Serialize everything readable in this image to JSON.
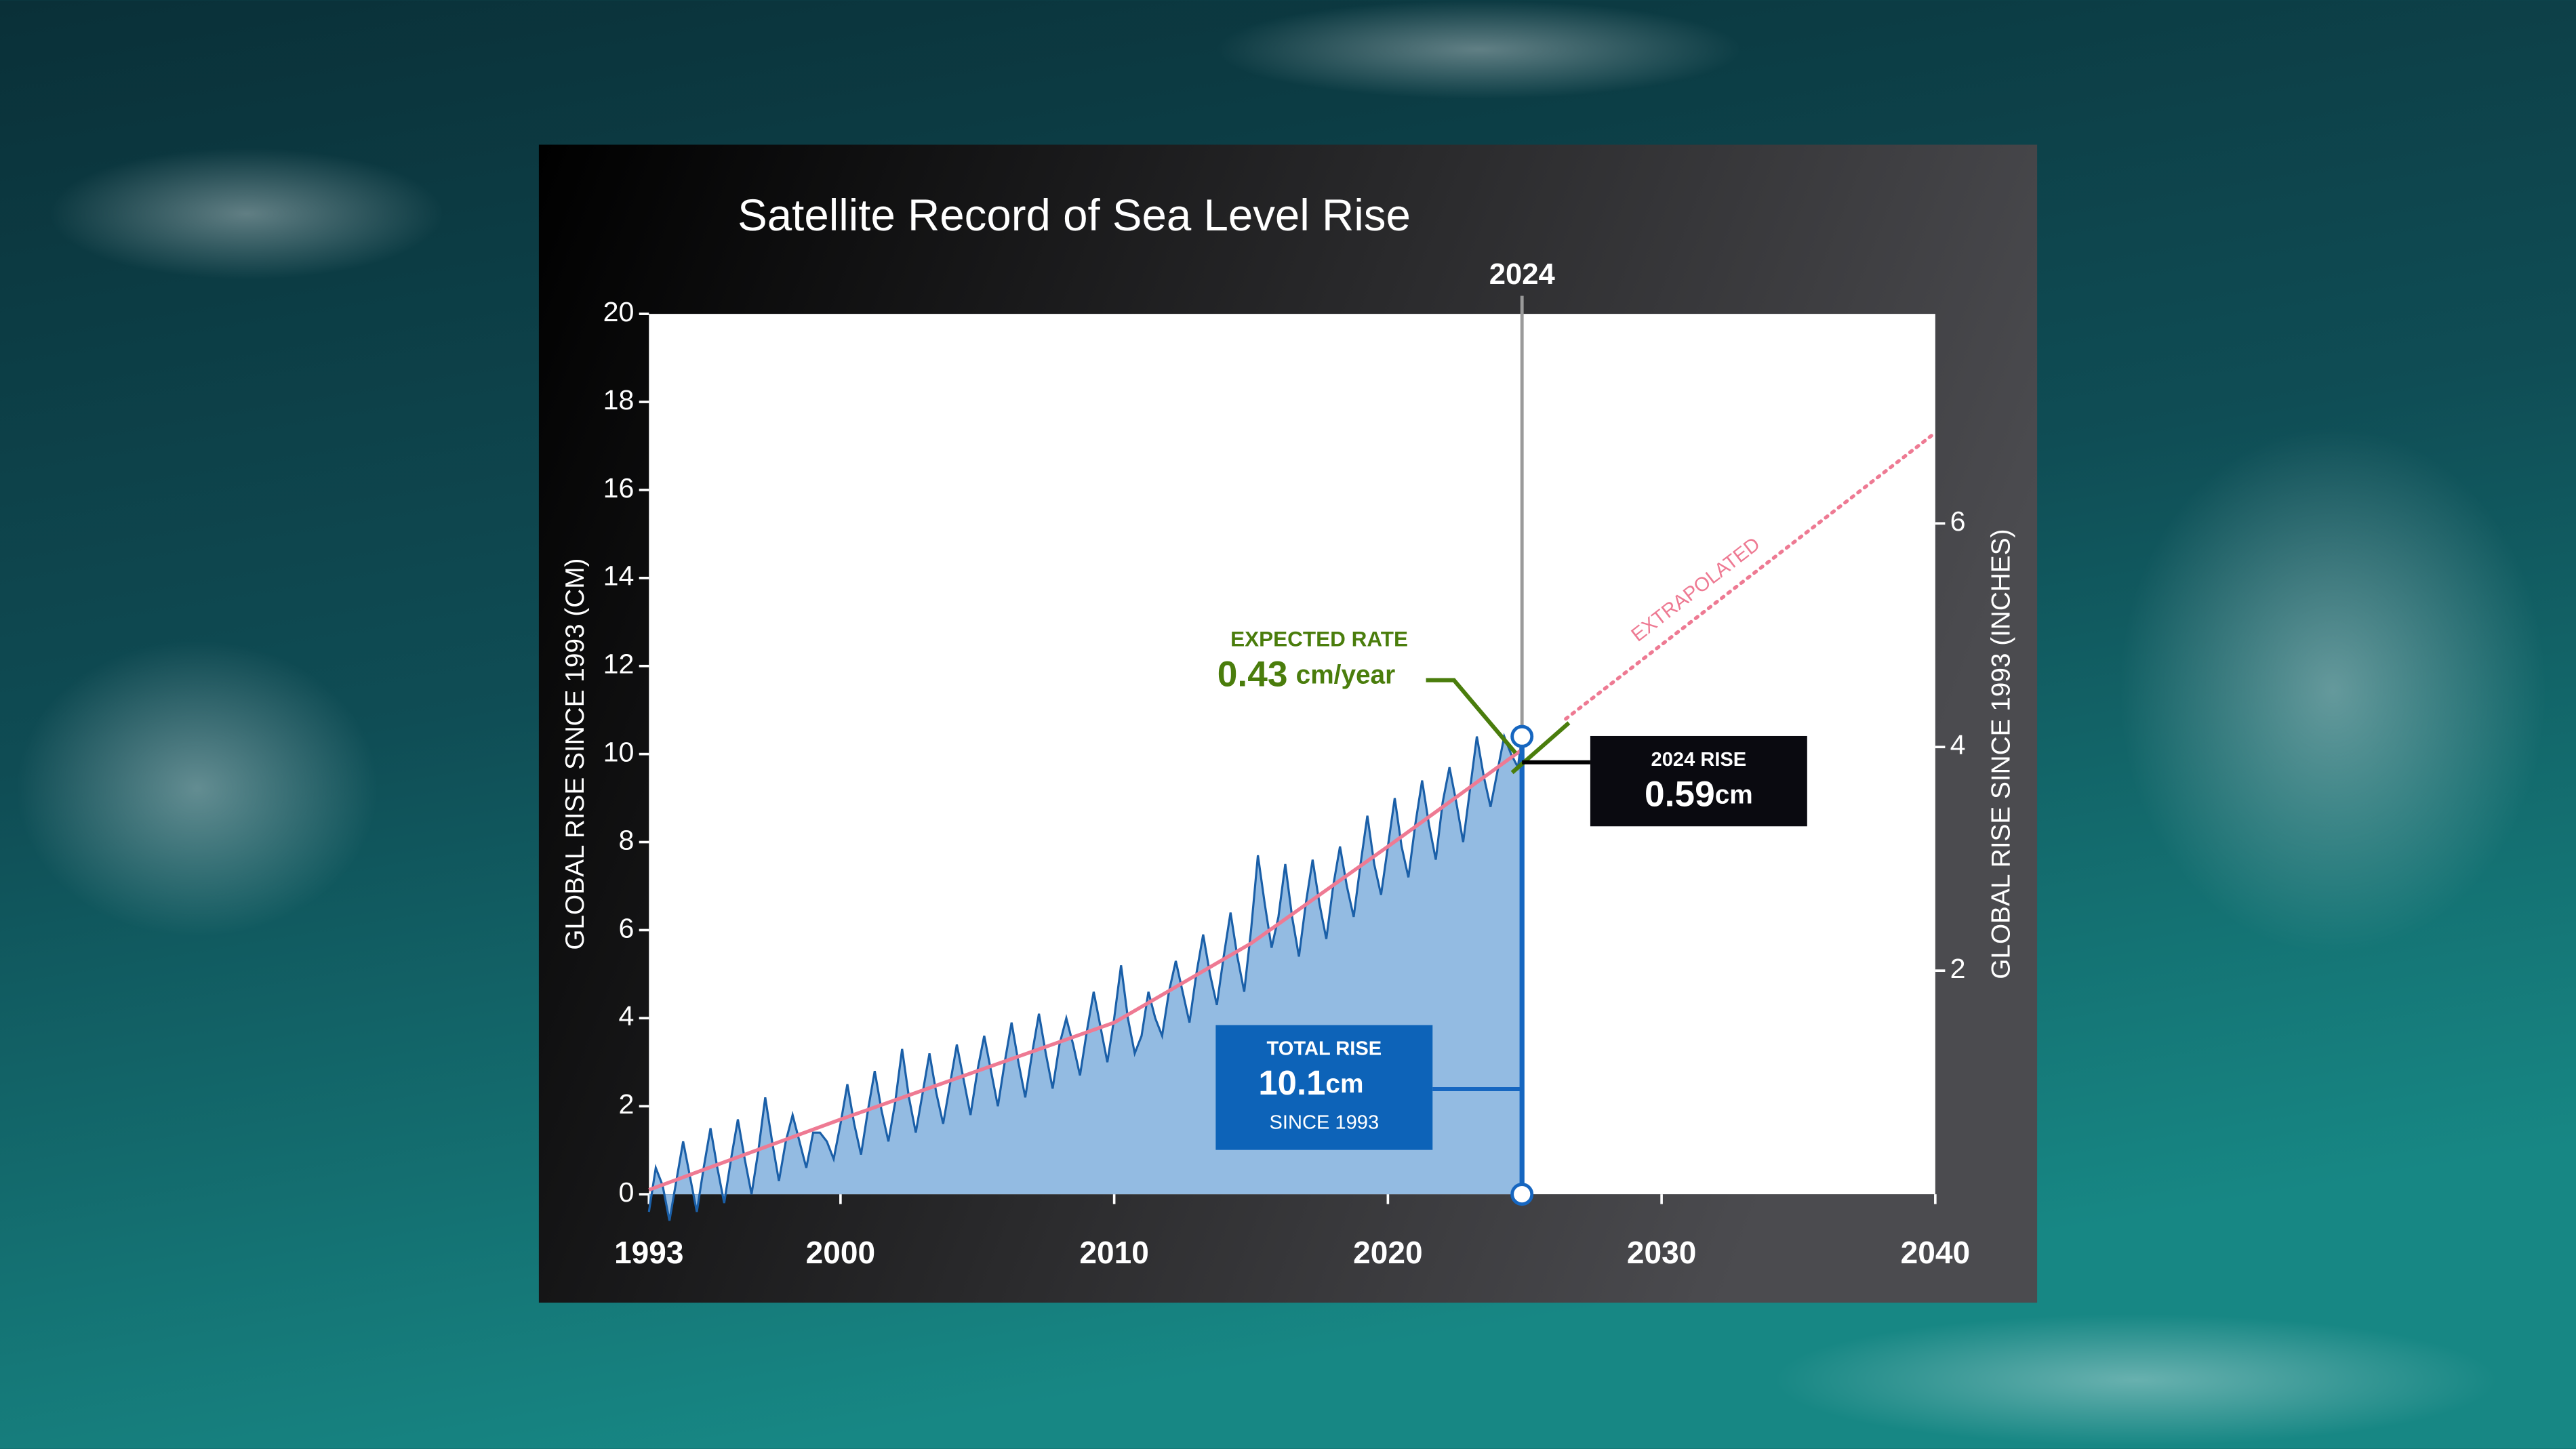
{
  "chart_data": {
    "type": "line",
    "title": "Satellite Record of Sea Level Rise",
    "ylabel": "GLOBAL RISE SINCE 1993 (CM)",
    "y2label": "GLOBAL RISE SINCE 1993 (INCHES)",
    "xlim": [
      1993,
      2040
    ],
    "xticks": [
      1993,
      2000,
      2010,
      2020,
      2030,
      2040
    ],
    "ylim": [
      0,
      20
    ],
    "yticks": [
      0,
      2,
      4,
      6,
      8,
      10,
      12,
      14,
      16,
      18,
      20
    ],
    "y2lim": [
      0,
      7.874
    ],
    "y2ticks": [
      2,
      4,
      6
    ],
    "series": [
      {
        "style": "area",
        "color": "#1a5fa8",
        "fill": "#93bbe2",
        "x": [
          1993,
          1993.25,
          1993.5,
          1993.75,
          1994,
          1994.25,
          1994.5,
          1994.75,
          1995,
          1995.25,
          1995.5,
          1995.75,
          1996,
          1996.25,
          1996.5,
          1996.75,
          1997,
          1997.25,
          1997.5,
          1997.75,
          1998,
          1998.25,
          1998.5,
          1998.75,
          1999,
          1999.25,
          1999.5,
          1999.75,
          2000,
          2000.25,
          2000.5,
          2000.75,
          2001,
          2001.25,
          2001.5,
          2001.75,
          2002,
          2002.25,
          2002.5,
          2002.75,
          2003,
          2003.25,
          2003.5,
          2003.75,
          2004,
          2004.25,
          2004.5,
          2004.75,
          2005,
          2005.25,
          2005.5,
          2005.75,
          2006,
          2006.25,
          2006.5,
          2006.75,
          2007,
          2007.25,
          2007.5,
          2007.75,
          2008,
          2008.25,
          2008.5,
          2008.75,
          2009,
          2009.25,
          2009.5,
          2009.75,
          2010,
          2010.25,
          2010.5,
          2010.75,
          2011,
          2011.25,
          2011.5,
          2011.75,
          2012,
          2012.25,
          2012.5,
          2012.75,
          2013,
          2013.25,
          2013.5,
          2013.75,
          2014,
          2014.25,
          2014.5,
          2014.75,
          2015,
          2015.25,
          2015.5,
          2015.75,
          2016,
          2016.25,
          2016.5,
          2016.75,
          2017,
          2017.25,
          2017.5,
          2017.75,
          2018,
          2018.25,
          2018.5,
          2018.75,
          2019,
          2019.25,
          2019.5,
          2019.75,
          2020,
          2020.25,
          2020.5,
          2020.75,
          2021,
          2021.25,
          2021.5,
          2021.75,
          2022,
          2022.25,
          2022.5,
          2022.75,
          2023,
          2023.25,
          2023.5,
          2023.75,
          2024,
          2024.25,
          2024.5,
          2024.75,
          2024.9
        ],
        "values": [
          -0.4,
          0.6,
          0.2,
          -0.6,
          0.3,
          1.2,
          0.4,
          -0.4,
          0.6,
          1.5,
          0.6,
          -0.2,
          0.8,
          1.7,
          0.8,
          0.0,
          1.0,
          2.2,
          1.2,
          0.3,
          1.2,
          1.8,
          1.2,
          0.6,
          1.4,
          1.4,
          1.2,
          0.8,
          1.6,
          2.5,
          1.6,
          0.9,
          1.9,
          2.8,
          1.9,
          1.2,
          2.1,
          3.3,
          2.2,
          1.4,
          2.3,
          3.2,
          2.3,
          1.6,
          2.5,
          3.4,
          2.6,
          1.8,
          2.8,
          3.6,
          2.8,
          2.0,
          3.0,
          3.9,
          3.0,
          2.2,
          3.2,
          4.1,
          3.2,
          2.4,
          3.4,
          4.0,
          3.4,
          2.7,
          3.7,
          4.6,
          3.8,
          3.0,
          4.0,
          5.2,
          4.0,
          3.2,
          3.6,
          4.6,
          4.0,
          3.6,
          4.6,
          5.3,
          4.6,
          3.9,
          5.0,
          5.9,
          5.0,
          4.3,
          5.4,
          6.4,
          5.4,
          4.6,
          6.0,
          7.7,
          6.6,
          5.6,
          6.3,
          7.5,
          6.3,
          5.4,
          6.6,
          7.6,
          6.6,
          5.8,
          7.0,
          7.9,
          7.0,
          6.3,
          7.5,
          8.6,
          7.5,
          6.8,
          7.9,
          9.0,
          7.9,
          7.2,
          8.4,
          9.4,
          8.4,
          7.6,
          8.9,
          9.7,
          8.9,
          8.0,
          9.2,
          10.4,
          9.5,
          8.8,
          9.6,
          10.4,
          10.0,
          9.7,
          10.4
        ]
      },
      {
        "style": "line",
        "color": "#ee7a93",
        "x": [
          1993,
          2000,
          2005,
          2010,
          2015,
          2020,
          2024.9
        ],
        "values": [
          0.1,
          1.7,
          2.8,
          3.9,
          5.7,
          7.9,
          10.1
        ]
      },
      {
        "style": "dotted",
        "color": "#ee7a93",
        "label": "EXTRAPOLATED",
        "x": [
          2026.5,
          2040
        ],
        "values": [
          10.8,
          17.3
        ]
      }
    ],
    "marker": {
      "x": 2024.9,
      "label": "2024"
    },
    "expected_rate": {
      "heading": "EXPECTED RATE",
      "value": "0.43",
      "unit": "cm/year"
    },
    "rise_2024": {
      "heading": "2024 RISE",
      "value": "0.59",
      "unit": "cm"
    },
    "total_rise": {
      "heading": "TOTAL RISE",
      "value": "10.1",
      "unit": "cm",
      "note": "SINCE 1993"
    }
  }
}
